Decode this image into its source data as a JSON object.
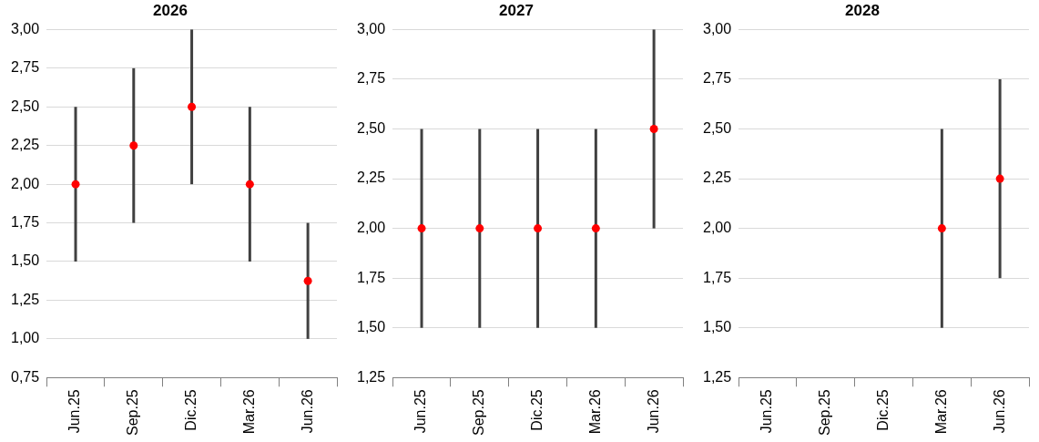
{
  "chart_data": [
    {
      "type": "scatter",
      "title": "2026",
      "categories": [
        "Jun.25",
        "Sep.25",
        "Dic.25",
        "Mar.26",
        "Jun.26"
      ],
      "values": [
        2.0,
        2.25,
        2.5,
        2.0,
        1.375
      ],
      "errors": [
        [
          1.5,
          2.5
        ],
        [
          1.75,
          2.75
        ],
        [
          2.0,
          3.0
        ],
        [
          1.5,
          2.5
        ],
        [
          1.0,
          1.75
        ]
      ],
      "color": "#ff0000",
      "marker": "circle",
      "grid": "y",
      "legend": false,
      "ylim": [
        0.75,
        3.0
      ],
      "yticks": [
        {
          "value": 0.75,
          "label": "0,75"
        },
        {
          "value": 1.0,
          "label": "1,00"
        },
        {
          "value": 1.25,
          "label": "1,25"
        },
        {
          "value": 1.5,
          "label": "1,50"
        },
        {
          "value": 1.75,
          "label": "1,75"
        },
        {
          "value": 2.0,
          "label": "2,00"
        },
        {
          "value": 2.25,
          "label": "2,25"
        },
        {
          "value": 2.5,
          "label": "2,50"
        },
        {
          "value": 2.75,
          "label": "2,75"
        },
        {
          "value": 3.0,
          "label": "3,00"
        }
      ]
    },
    {
      "type": "scatter",
      "title": "2027",
      "categories": [
        "Jun.25",
        "Sep.25",
        "Dic.25",
        "Mar.26",
        "Jun.26"
      ],
      "values": [
        2.0,
        2.0,
        2.0,
        2.0,
        2.5
      ],
      "errors": [
        [
          1.5,
          2.5
        ],
        [
          1.5,
          2.5
        ],
        [
          1.5,
          2.5
        ],
        [
          1.5,
          2.5
        ],
        [
          2.0,
          3.0
        ]
      ],
      "color": "#ff0000",
      "marker": "circle",
      "grid": "y",
      "legend": false,
      "ylim": [
        1.25,
        3.0
      ],
      "yticks": [
        {
          "value": 1.25,
          "label": "1,25"
        },
        {
          "value": 1.5,
          "label": "1,50"
        },
        {
          "value": 1.75,
          "label": "1,75"
        },
        {
          "value": 2.0,
          "label": "2,00"
        },
        {
          "value": 2.25,
          "label": "2,25"
        },
        {
          "value": 2.5,
          "label": "2,50"
        },
        {
          "value": 2.75,
          "label": "2,75"
        },
        {
          "value": 3.0,
          "label": "3,00"
        }
      ]
    },
    {
      "type": "scatter",
      "title": "2028",
      "categories": [
        "Jun.25",
        "Sep.25",
        "Dic.25",
        "Mar.26",
        "Jun.26"
      ],
      "values": [
        null,
        null,
        null,
        2.0,
        2.25
      ],
      "errors": [
        null,
        null,
        null,
        [
          1.5,
          2.5
        ],
        [
          1.75,
          2.75
        ]
      ],
      "color": "#ff0000",
      "marker": "circle",
      "grid": "y",
      "legend": false,
      "ylim": [
        1.25,
        3.0
      ],
      "yticks": [
        {
          "value": 1.25,
          "label": "1,25"
        },
        {
          "value": 1.5,
          "label": "1,50"
        },
        {
          "value": 1.75,
          "label": "1,75"
        },
        {
          "value": 2.0,
          "label": "2,00"
        },
        {
          "value": 2.25,
          "label": "2,25"
        },
        {
          "value": 2.5,
          "label": "2,50"
        },
        {
          "value": 2.75,
          "label": "2,75"
        },
        {
          "value": 3.0,
          "label": "3,00"
        }
      ]
    }
  ]
}
